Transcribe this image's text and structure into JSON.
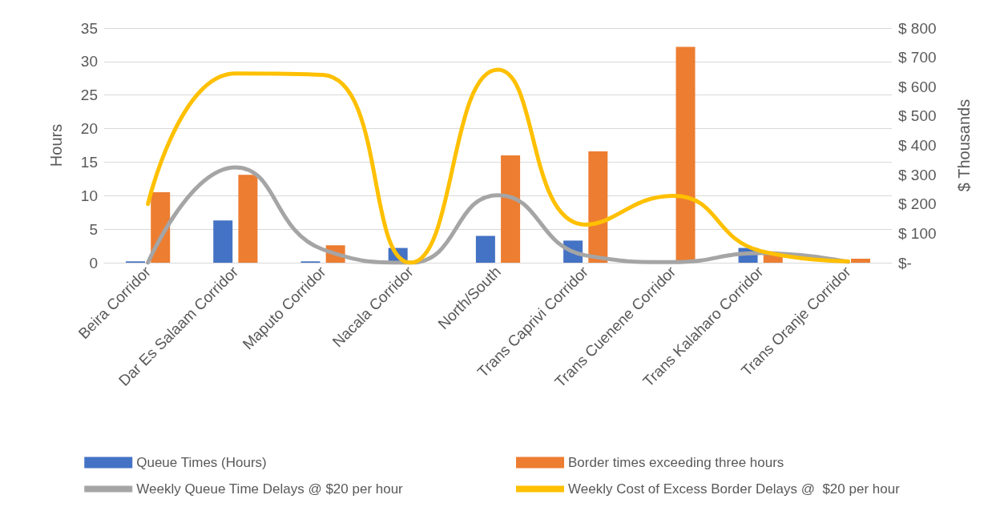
{
  "chart_data": {
    "type": "bar",
    "ylabel": "Hours",
    "y2label": "$ Thousands",
    "categories": [
      "Beira Corridor",
      "Dar Es Salaam Corridor",
      "Maputo Corridor",
      "Nacala Corridor",
      "North/South",
      "Trans Caprivi Corridor",
      "Trans Cuenene Corridor",
      "Trans Kalaharo Corridor",
      "Trans Oranje Corridor"
    ],
    "series": [
      {
        "name": "Queue Times (Hours)",
        "color": "#4472c4",
        "values": [
          0.2,
          6.3,
          0.2,
          2.2,
          4.0,
          3.3,
          0,
          2.2,
          0
        ]
      },
      {
        "name": "Border times exceeding three hours",
        "color": "#ed7d31",
        "values": [
          10.5,
          13.1,
          2.6,
          null,
          16.0,
          16.6,
          32.2,
          1.2,
          0.6
        ]
      },
      {
        "name": "Weekly Queue Time Delays @ $20 per hour",
        "type": "line",
        "axis": "y2",
        "color": "#a5a5a5",
        "values": [
          0,
          325,
          45,
          0,
          230,
          25,
          2,
          33,
          3
        ]
      },
      {
        "name": "Weekly Cost of Excess Border Delays @  $20 per hour",
        "type": "line",
        "axis": "y2",
        "color": "#ffc000",
        "values": [
          200,
          645,
          640,
          0,
          658,
          130,
          228,
          40,
          5
        ]
      }
    ],
    "ylim": [
      0,
      35
    ],
    "yticks": [
      0,
      5,
      10,
      15,
      20,
      25,
      30,
      35
    ],
    "y2lim": [
      0,
      800
    ],
    "y2ticks": [
      {
        "value": 0,
        "label": "$-"
      },
      {
        "value": 100,
        "label": "$ 100"
      },
      {
        "value": 200,
        "label": "$ 200"
      },
      {
        "value": 300,
        "label": "$ 300"
      },
      {
        "value": 400,
        "label": "$ 400"
      },
      {
        "value": 500,
        "label": "$ 500"
      },
      {
        "value": 600,
        "label": "$ 600"
      },
      {
        "value": 700,
        "label": "$ 700"
      },
      {
        "value": 800,
        "label": "$ 800"
      }
    ],
    "grid": "y",
    "legend": "bottom",
    "marker": "none"
  }
}
